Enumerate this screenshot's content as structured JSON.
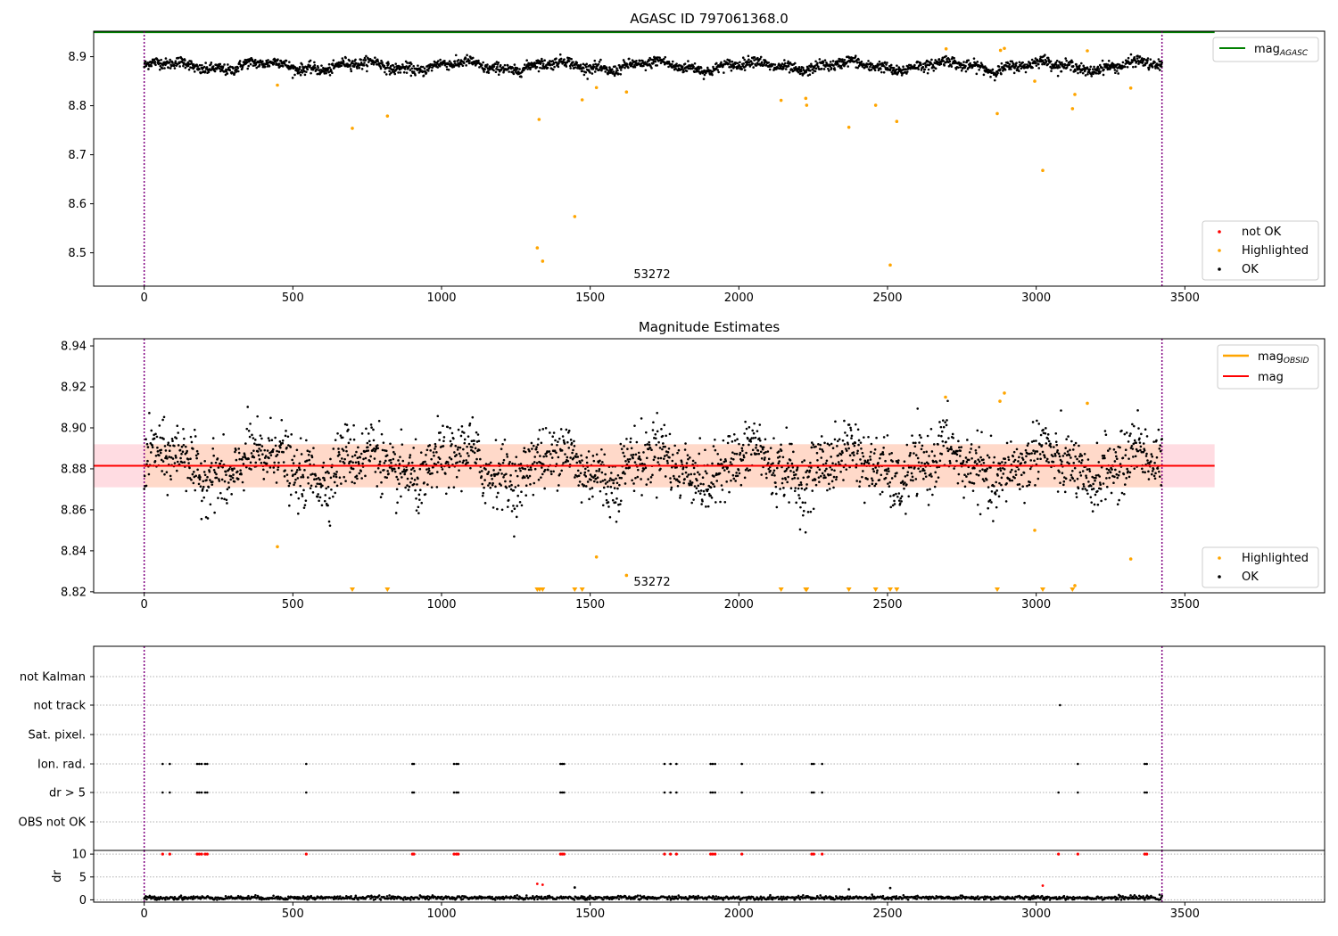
{
  "figure": {
    "top_title": "AGASC ID 797061368.0",
    "middle_title": "Magnitude Estimates",
    "obsid_label": "53272"
  },
  "colors": {
    "ok": "#000000",
    "highlighted": "#ffa500",
    "not_ok": "#ff0000",
    "agasc_line": "#008000",
    "mean_line": "#ff0000",
    "obsid_line": "#ffa500",
    "band_red": "#ffd0d8",
    "band_orange": "#ffd8c0",
    "boundary": "#800080",
    "grid": "#b0b0b0"
  },
  "chart_data": [
    {
      "type": "scatter",
      "title": "AGASC ID 797061368.0",
      "xlim": [
        -170,
        3970
      ],
      "ylim": [
        8.432,
        8.952
      ],
      "xticks": [
        0,
        500,
        1000,
        1500,
        2000,
        2500,
        3000,
        3500
      ],
      "yticks": [
        8.5,
        8.6,
        8.7,
        8.8,
        8.9
      ],
      "ytick_labels": [
        "8.5",
        "8.6",
        "8.7",
        "8.8",
        "8.9"
      ],
      "obs_bounds": [
        0,
        3423
      ],
      "ok_series": {
        "name": "OK",
        "x_range": [
          0,
          3423
        ],
        "mean": 8.881,
        "spread": 0.01
      },
      "mag_agasc": 8.95,
      "highlighted_points": [
        [
          448,
          8.842
        ],
        [
          700,
          8.754
        ],
        [
          818,
          8.779
        ],
        [
          1322,
          8.51
        ],
        [
          1328,
          8.772
        ],
        [
          1340,
          8.483
        ],
        [
          1448,
          8.574
        ],
        [
          1473,
          8.812
        ],
        [
          1521,
          8.837
        ],
        [
          1622,
          8.828
        ],
        [
          2142,
          8.811
        ],
        [
          2225,
          8.815
        ],
        [
          2228,
          8.801
        ],
        [
          2370,
          8.756
        ],
        [
          2460,
          8.801
        ],
        [
          2509,
          8.475
        ],
        [
          2531,
          8.768
        ],
        [
          2697,
          8.916
        ],
        [
          2869,
          8.784
        ],
        [
          2880,
          8.913
        ],
        [
          2893,
          8.917
        ],
        [
          2995,
          8.85
        ],
        [
          3022,
          8.668
        ],
        [
          3122,
          8.794
        ],
        [
          3130,
          8.823
        ],
        [
          3172,
          8.912
        ],
        [
          3318,
          8.836
        ]
      ],
      "legend_top": [
        "mag_AGASC"
      ],
      "legend_bottom": [
        "not OK",
        "Highlighted",
        "OK"
      ],
      "annotation": "53272"
    },
    {
      "type": "scatter",
      "title": "Magnitude Estimates",
      "xlim": [
        -170,
        3970
      ],
      "ylim": [
        8.8195,
        8.9435
      ],
      "xticks": [
        0,
        500,
        1000,
        1500,
        2000,
        2500,
        3000,
        3500
      ],
      "yticks": [
        8.82,
        8.84,
        8.86,
        8.88,
        8.9,
        8.92,
        8.94
      ],
      "ytick_labels": [
        "8.82",
        "8.84",
        "8.86",
        "8.88",
        "8.90",
        "8.92",
        "8.94"
      ],
      "mag": 8.8815,
      "mag_band": [
        8.871,
        8.892
      ],
      "mag_obsid_band": [
        8.871,
        8.892
      ],
      "band_x_range": [
        -170,
        3600
      ],
      "highlighted_points": [
        [
          448,
          8.842
        ],
        [
          1521,
          8.837
        ],
        [
          1622,
          8.828
        ],
        [
          2695,
          8.915
        ],
        [
          2878,
          8.913
        ],
        [
          2893,
          8.917
        ],
        [
          2995,
          8.85
        ],
        [
          3130,
          8.823
        ],
        [
          3172,
          8.912
        ],
        [
          3318,
          8.836
        ]
      ],
      "below_range_markers": [
        700,
        818,
        1322,
        1330,
        1340,
        1448,
        1473,
        2142,
        2225,
        2228,
        2370,
        2460,
        2509,
        2531,
        2869,
        3022,
        3122
      ],
      "legend_top": [
        "mag_OBSID",
        "mag"
      ],
      "legend_bottom": [
        "Highlighted",
        "OK"
      ],
      "annotation": "53272"
    },
    {
      "type": "scatter",
      "title": "",
      "xlim": [
        -170,
        3970
      ],
      "flag_categories": [
        "not Kalman",
        "not track",
        "Sat. pixel.",
        "Ion. rad.",
        "dr > 5",
        "OBS not OK"
      ],
      "flag_points": {
        "not Kalman": [],
        "not track": [
          3080
        ],
        "Sat. pixel.": [],
        "Ion. rad.": [
          62,
          86,
          178,
          185,
          193,
          205,
          212,
          545,
          902,
          907,
          1042,
          1050,
          1056,
          1400,
          1406,
          1412,
          1750,
          1770,
          1790,
          1905,
          1912,
          1920,
          2010,
          2245,
          2252,
          2280,
          3140,
          3365,
          3372
        ],
        "dr > 5": [
          62,
          86,
          178,
          185,
          193,
          205,
          212,
          545,
          902,
          907,
          1042,
          1050,
          1056,
          1400,
          1406,
          1412,
          1750,
          1770,
          1790,
          1905,
          1912,
          1920,
          2010,
          2245,
          2252,
          2280,
          3075,
          3140,
          3365,
          3372
        ],
        "OBS not OK": []
      }
    },
    {
      "type": "scatter",
      "title": "",
      "xlim": [
        -170,
        3970
      ],
      "ylim": [
        -0.5,
        10.8
      ],
      "xticks": [
        0,
        500,
        1000,
        1500,
        2000,
        2500,
        3000,
        3500
      ],
      "yticks": [
        0,
        5,
        10
      ],
      "ytick_labels": [
        "0",
        "5",
        "10"
      ],
      "ylabel": "dr",
      "dr_baseline": {
        "x_range": [
          0,
          3423
        ],
        "mean": 0.45,
        "spread": 0.35
      },
      "clipped_dr_x": [
        62,
        86,
        178,
        185,
        193,
        205,
        212,
        545,
        902,
        907,
        1042,
        1050,
        1056,
        1400,
        1406,
        1412,
        1750,
        1770,
        1790,
        1905,
        1912,
        1920,
        2010,
        2245,
        2252,
        2280,
        3075,
        3140,
        3365,
        3372
      ],
      "dr_outliers": [
        {
          "x": 1322,
          "y": 3.5,
          "status": "not OK"
        },
        {
          "x": 1340,
          "y": 3.3,
          "status": "not OK"
        },
        {
          "x": 3022,
          "y": 3.1,
          "status": "not OK"
        },
        {
          "x": 1448,
          "y": 2.7,
          "status": "OK"
        },
        {
          "x": 2370,
          "y": 2.3,
          "status": "OK"
        },
        {
          "x": 2509,
          "y": 2.6,
          "status": "OK"
        }
      ]
    }
  ]
}
